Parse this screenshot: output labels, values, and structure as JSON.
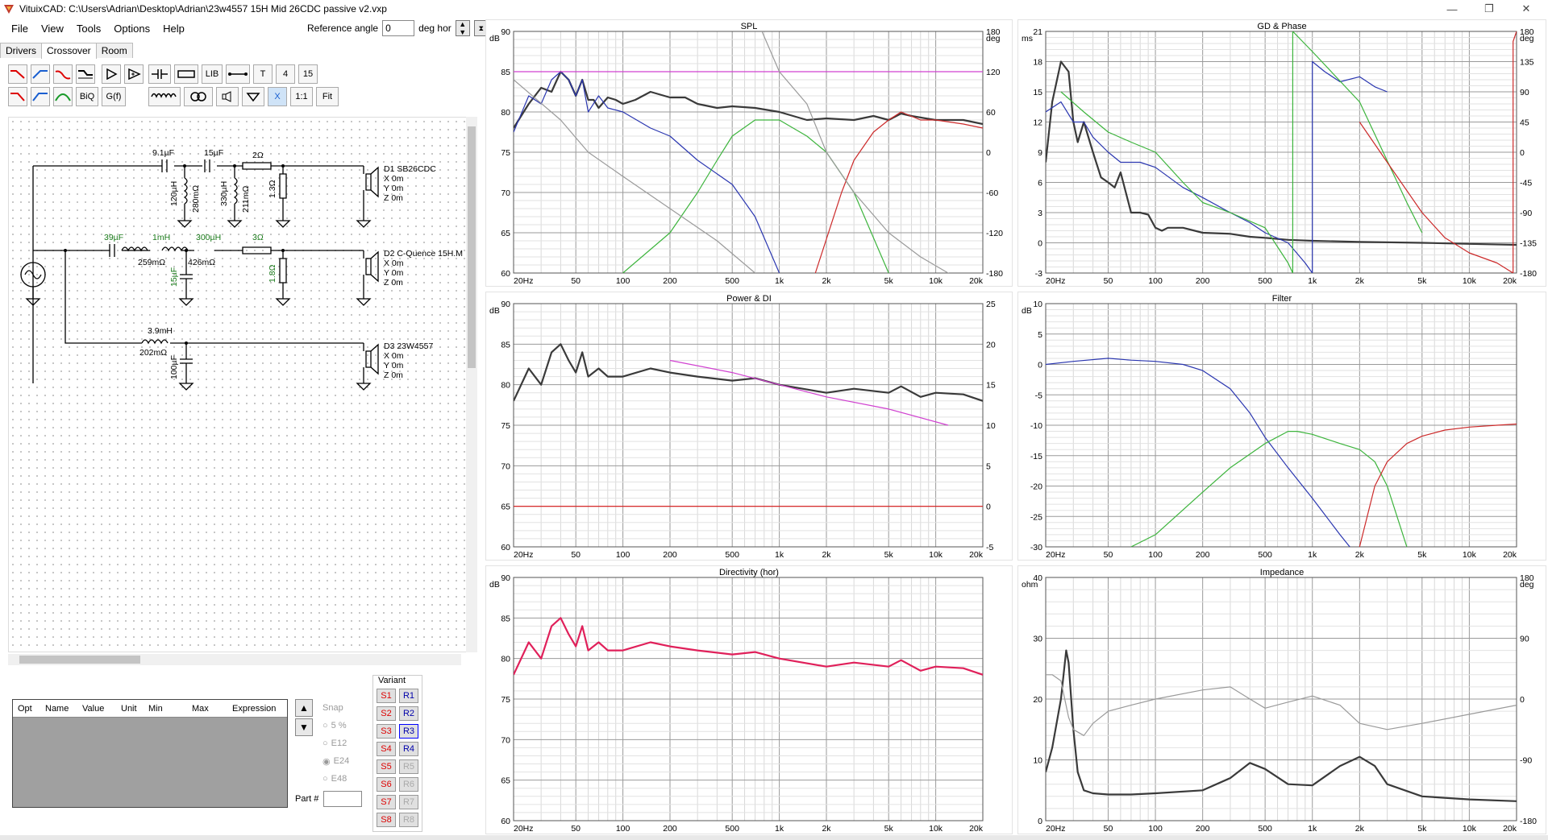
{
  "window": {
    "title": "VituixCAD: C:\\Users\\Adrian\\Desktop\\Adrian\\23w4557 15H Mid 26CDC passive v2.vxp",
    "controls": [
      "—",
      "❐",
      "✕"
    ]
  },
  "menu": [
    "File",
    "View",
    "Tools",
    "Options",
    "Help"
  ],
  "reference": {
    "label": "Reference angle",
    "value": "0",
    "unit": "deg hor"
  },
  "tabs": [
    "Drivers",
    "Crossover",
    "Room"
  ],
  "active_tab": "Crossover",
  "toolbar": {
    "row1": [
      "lowpass-icon",
      "highpass-icon",
      "bandpass-icon",
      "shelf-icon",
      "buffer-icon",
      "summing-icon",
      "capacitor-icon",
      "resistor-icon",
      "LIB",
      "wire-icon",
      "T",
      "4",
      "15"
    ],
    "row2": [
      "lowpass2-icon",
      "highpass2-icon",
      "bandpass2-icon",
      "BiQ",
      "G(f)",
      "inductor-icon",
      "transformer-icon",
      "driver-icon",
      "ground-icon",
      "X",
      "1:1",
      "Fit"
    ]
  },
  "schematic": {
    "labels": [
      "9.1µF",
      "15µF",
      "2Ω",
      "120µH",
      "280mΩ",
      "330µH",
      "211mΩ",
      "1.3Ω",
      "39µF",
      "1mH",
      "259mΩ",
      "300µH",
      "426mΩ",
      "3Ω",
      "15µF",
      "1.8Ω",
      "3.9mH",
      "202mΩ",
      "100µF"
    ],
    "drivers": [
      {
        "name": "D1 SB26CDC",
        "x": "X 0m",
        "y": "Y 0m",
        "z": "Z 0m"
      },
      {
        "name": "D2 C-Quence 15H.M",
        "x": "X 0m",
        "y": "Y 0m",
        "z": "Z 0m"
      },
      {
        "name": "D3 23W4557",
        "x": "X 0m",
        "y": "Y 0m",
        "z": "Z 0m"
      }
    ]
  },
  "params_table": {
    "headers": [
      "Opt",
      "Name",
      "Value",
      "Unit",
      "Min",
      "Max",
      "Expression"
    ]
  },
  "snap": {
    "label": "Snap",
    "options": [
      "5 %",
      "E12",
      "E24",
      "E48"
    ],
    "selected": "E24"
  },
  "part_label": "Part #",
  "variant": {
    "label": "Variant",
    "s": [
      "S1",
      "S2",
      "S3",
      "S4",
      "S5",
      "S6",
      "S7",
      "S8"
    ],
    "r": [
      "R1",
      "R2",
      "R3",
      "R4",
      "R5",
      "R6",
      "R7",
      "R8"
    ],
    "active_r": "R3"
  },
  "freq_ticks": [
    "20Hz",
    "50",
    "100",
    "200",
    "500",
    "1k",
    "2k",
    "5k",
    "10k",
    "20k"
  ],
  "charts": [
    {
      "key": "spl",
      "title": "SPL",
      "lunit": "dB",
      "runit": "deg",
      "left_ticks": [
        "90",
        "85",
        "80",
        "75",
        "70",
        "65",
        "60"
      ],
      "right_ticks": [
        "180",
        "120",
        "60",
        "0",
        "-60",
        "-120",
        "-180"
      ]
    },
    {
      "key": "gd",
      "title": "GD & Phase",
      "lunit": "ms",
      "runit": "deg",
      "left_ticks": [
        "21",
        "18",
        "15",
        "12",
        "9",
        "6",
        "3",
        "0",
        "-3"
      ],
      "right_ticks": [
        "180",
        "135",
        "90",
        "45",
        "0",
        "-45",
        "-90",
        "-135",
        "-180"
      ]
    },
    {
      "key": "power",
      "title": "Power & DI",
      "lunit": "dB",
      "runit": "",
      "left_ticks": [
        "90",
        "85",
        "80",
        "75",
        "70",
        "65",
        "60"
      ],
      "right_ticks": [
        "25",
        "20",
        "15",
        "10",
        "5",
        "0",
        "-5"
      ]
    },
    {
      "key": "filter",
      "title": "Filter",
      "lunit": "dB",
      "runit": "",
      "left_ticks": [
        "10",
        "5",
        "0",
        "-5",
        "-10",
        "-15",
        "-20",
        "-25",
        "-30"
      ],
      "right_ticks": []
    },
    {
      "key": "directivity",
      "title": "Directivity (hor)",
      "lunit": "dB",
      "runit": "",
      "left_ticks": [
        "90",
        "85",
        "80",
        "75",
        "70",
        "65",
        "60"
      ],
      "right_ticks": []
    },
    {
      "key": "impedance",
      "title": "Impedance",
      "lunit": "ohm",
      "runit": "deg",
      "left_ticks": [
        "40",
        "30",
        "20",
        "10",
        "0"
      ],
      "right_ticks": [
        "180",
        "90",
        "0",
        "-90",
        "-180"
      ]
    }
  ],
  "chart_data": [
    {
      "type": "line",
      "title": "SPL",
      "xscale": "log",
      "xlim": [
        20,
        20000
      ],
      "ylim": [
        60,
        90
      ],
      "y2lim": [
        -180,
        180
      ],
      "series": [
        {
          "color": "#3a3a3a",
          "x": [
            20,
            25,
            30,
            35,
            40,
            45,
            50,
            55,
            60,
            65,
            70,
            80,
            90,
            100,
            120,
            150,
            200,
            250,
            300,
            400,
            500,
            700,
            1000,
            1500,
            2000,
            3000,
            4000,
            5000,
            6000,
            7000,
            10000,
            15000,
            20000
          ],
          "y": [
            78,
            81,
            83,
            82.5,
            85,
            84,
            82,
            84,
            81.5,
            81.5,
            80.5,
            81.8,
            81.5,
            81,
            81.5,
            82.5,
            81.8,
            81.8,
            81,
            80.5,
            80.7,
            80.5,
            80,
            79,
            79.2,
            79,
            79.5,
            79,
            79.8,
            79.5,
            79,
            79,
            78.5
          ]
        },
        {
          "color": "#2a36b0",
          "x": [
            20,
            25,
            30,
            35,
            40,
            45,
            50,
            55,
            60,
            70,
            80,
            100,
            150,
            200,
            300,
            500,
            700,
            1000
          ],
          "y": [
            77.5,
            82,
            81,
            84,
            85,
            84,
            82,
            84,
            80,
            82,
            80.5,
            80,
            78,
            77,
            74,
            71,
            67,
            60
          ]
        },
        {
          "color": "#3cb43c",
          "x": [
            100,
            200,
            300,
            400,
            500,
            700,
            1000,
            1500,
            2000,
            3000,
            5000
          ],
          "y": [
            60,
            65,
            70,
            74,
            77,
            79,
            79,
            77,
            75,
            70,
            60
          ]
        },
        {
          "color": "#cc2a2a",
          "x": [
            1700,
            2500,
            3000,
            4000,
            5000,
            6000,
            8000,
            10000,
            15000,
            20000
          ],
          "y": [
            60,
            70,
            74,
            77.5,
            79,
            80,
            79,
            79,
            78.5,
            78
          ]
        },
        {
          "color": "#d040d0",
          "x": [
            20,
            20000
          ],
          "y": [
            85,
            85
          ]
        },
        {
          "color": "#9a9a9a",
          "x": [
            20,
            40,
            60,
            100,
            200,
            400,
            700,
            1000,
            2000,
            5000,
            10000,
            20000
          ],
          "y": [
            84,
            79,
            75,
            72,
            68,
            64,
            60,
            58,
            56,
            52,
            48,
            44
          ]
        },
        {
          "color": "#9a9a9a",
          "x": [
            700,
            1000,
            1500,
            2000,
            3000,
            5000,
            8000,
            12000,
            20000
          ],
          "y": [
            92,
            85,
            81,
            75,
            70,
            65,
            62,
            60,
            58
          ]
        }
      ]
    },
    {
      "type": "line",
      "title": "GD & Phase",
      "xscale": "log",
      "xlim": [
        20,
        20000
      ],
      "ylim": [
        -3,
        21
      ],
      "y2lim": [
        -180,
        180
      ],
      "series": [
        {
          "color": "#3a3a3a",
          "x": [
            20,
            22,
            25,
            28,
            30,
            32,
            35,
            40,
            45,
            50,
            55,
            60,
            70,
            80,
            90,
            100,
            110,
            120,
            150,
            200,
            300,
            400,
            500,
            700,
            1000,
            2000,
            5000,
            10000,
            20000
          ],
          "y": [
            8,
            14,
            18,
            17,
            12,
            10,
            12,
            9,
            6.5,
            6,
            5.5,
            7,
            3,
            3,
            2.8,
            1.5,
            1.2,
            1.5,
            1.5,
            1,
            0.9,
            0.6,
            0.5,
            0.3,
            0.2,
            0.1,
            0,
            -0.1,
            -0.2
          ]
        },
        {
          "color": "#2a36b0",
          "x": [
            20,
            25,
            30,
            35,
            40,
            50,
            60,
            80,
            100,
            150,
            200,
            300,
            400,
            500,
            700,
            900,
            1000,
            1000,
            1200,
            1500,
            2000,
            2500,
            3000
          ],
          "y": [
            13,
            14,
            12,
            12,
            10.5,
            9,
            8,
            8,
            7.5,
            5.5,
            4.5,
            3,
            2,
            1,
            0,
            -2,
            -3,
            18,
            17,
            16,
            16.5,
            15.5,
            15
          ]
        },
        {
          "color": "#3cb43c",
          "x": [
            25,
            35,
            50,
            70,
            100,
            150,
            200,
            300,
            500,
            700,
            750,
            750,
            1000,
            2000,
            4000,
            5000
          ],
          "y": [
            15,
            13,
            11,
            10,
            9,
            6,
            4,
            3,
            1.5,
            -2,
            -3,
            21,
            19,
            14,
            4,
            1
          ]
        },
        {
          "color": "#cc2a2a",
          "x": [
            2000,
            3000,
            5000,
            7000,
            10000,
            15000,
            19000,
            19000,
            20000
          ],
          "y": [
            12,
            8,
            3,
            0.5,
            -1,
            -2,
            -3,
            20,
            21
          ]
        }
      ]
    },
    {
      "type": "line",
      "title": "Power & DI",
      "xscale": "log",
      "xlim": [
        20,
        20000
      ],
      "ylim": [
        60,
        90
      ],
      "y2lim": [
        -5,
        25
      ],
      "series": [
        {
          "color": "#3a3a3a",
          "x": [
            20,
            25,
            30,
            35,
            40,
            45,
            50,
            55,
            60,
            70,
            80,
            100,
            150,
            200,
            300,
            500,
            700,
            1000,
            2000,
            3000,
            5000,
            6000,
            8000,
            10000,
            15000,
            20000
          ],
          "y": [
            78,
            82,
            80,
            84,
            85,
            83,
            81.5,
            84,
            81,
            82,
            81,
            81,
            82,
            81.5,
            81,
            80.5,
            80.8,
            80,
            79,
            79.5,
            79,
            79.8,
            78.5,
            79,
            78.8,
            78
          ]
        },
        {
          "color": "#d040d0",
          "x": [
            200,
            500,
            1000,
            2000,
            5000,
            12000
          ],
          "y": [
            83,
            81.5,
            80,
            78.5,
            77,
            75
          ]
        },
        {
          "color": "#dd1a1a",
          "x": [
            20,
            20000
          ],
          "y": [
            65,
            65
          ]
        }
      ]
    },
    {
      "type": "line",
      "title": "Filter",
      "xscale": "log",
      "xlim": [
        20,
        20000
      ],
      "ylim": [
        -30,
        10
      ],
      "series": [
        {
          "color": "#2a36b0",
          "x": [
            20,
            30,
            50,
            70,
            100,
            150,
            200,
            300,
            400,
            500,
            700,
            1000,
            1500,
            2000
          ],
          "y": [
            0,
            0.5,
            1,
            0.7,
            0.5,
            0,
            -1,
            -4,
            -8,
            -12,
            -17,
            -22,
            -28,
            -32
          ]
        },
        {
          "color": "#3cb43c",
          "x": [
            70,
            100,
            200,
            300,
            500,
            700,
            800,
            1000,
            1500,
            2000,
            2500,
            3000,
            4000
          ],
          "y": [
            -30,
            -28,
            -21,
            -17,
            -13,
            -11,
            -11,
            -11.5,
            -13,
            -14,
            -16,
            -20,
            -30
          ]
        },
        {
          "color": "#cc2a2a",
          "x": [
            2000,
            2500,
            3000,
            4000,
            5000,
            7000,
            10000,
            15000,
            20000
          ],
          "y": [
            -30,
            -20,
            -16,
            -13,
            -11.8,
            -10.8,
            -10.3,
            -10,
            -9.8
          ]
        }
      ]
    },
    {
      "type": "line",
      "title": "Directivity (hor)",
      "xscale": "log",
      "xlim": [
        20,
        20000
      ],
      "ylim": [
        60,
        90
      ],
      "series": [
        {
          "color": "#e0205a",
          "x": [
            20,
            25,
            30,
            35,
            40,
            45,
            50,
            55,
            60,
            70,
            80,
            100,
            150,
            200,
            300,
            500,
            700,
            1000,
            2000,
            3000,
            5000,
            6000,
            8000,
            10000,
            15000,
            20000
          ],
          "y": [
            78,
            82,
            80,
            84,
            85,
            83,
            81.5,
            84,
            81,
            82,
            81,
            81,
            82,
            81.5,
            81,
            80.5,
            80.8,
            80,
            79,
            79.5,
            79,
            79.8,
            78.5,
            79,
            78.8,
            78
          ]
        }
      ]
    },
    {
      "type": "line",
      "title": "Impedance",
      "xscale": "log",
      "xlim": [
        20,
        20000
      ],
      "ylim": [
        0,
        40
      ],
      "y2lim": [
        -180,
        180
      ],
      "series": [
        {
          "color": "#3a3a3a",
          "x": [
            20,
            22,
            25,
            27,
            28,
            30,
            32,
            35,
            40,
            50,
            70,
            100,
            200,
            300,
            400,
            500,
            700,
            1000,
            1500,
            2000,
            2500,
            3000,
            5000,
            10000,
            20000
          ],
          "y": [
            8,
            12,
            20,
            28,
            26,
            15,
            8,
            5,
            4.5,
            4.3,
            4.3,
            4.5,
            5,
            7,
            9.5,
            8.5,
            6,
            5.8,
            9,
            10.5,
            9,
            6,
            4,
            3.5,
            3.2
          ]
        },
        {
          "color": "#9a9a9a",
          "x": [
            20,
            22,
            25,
            28,
            30,
            35,
            40,
            50,
            70,
            100,
            200,
            300,
            400,
            500,
            700,
            1000,
            1500,
            2000,
            3000,
            5000,
            10000,
            20000
          ],
          "y": [
            24,
            24,
            23,
            17,
            15,
            14,
            16,
            18,
            19,
            20,
            21.5,
            22,
            20,
            18.5,
            19.5,
            20.5,
            19,
            16,
            15,
            16,
            17.5,
            19
          ]
        }
      ]
    }
  ]
}
